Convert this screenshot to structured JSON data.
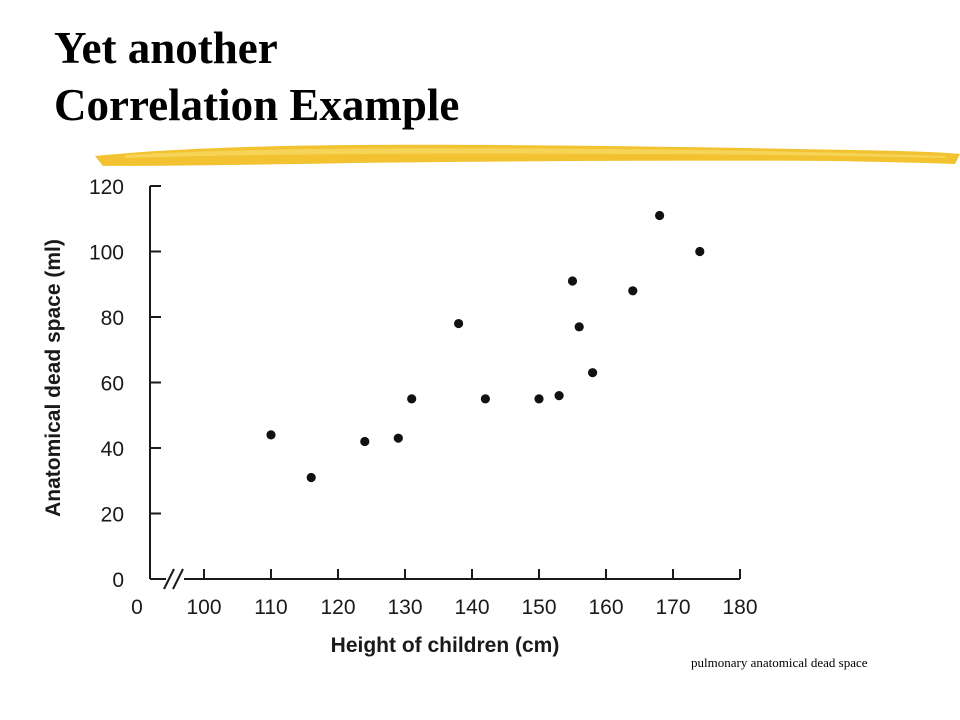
{
  "slide": {
    "title_line1": "Yet another",
    "title_line2": "Correlation Example",
    "caption": "pulmonary anatomical dead space",
    "accent_color": "#f2c230"
  },
  "chart_data": {
    "type": "scatter",
    "title": "",
    "xlabel": "Height of children (cm)",
    "ylabel": "Anatomical dead space (ml)",
    "x_axis_break": true,
    "x_ticks": [
      0,
      100,
      110,
      120,
      130,
      140,
      150,
      160,
      170,
      180
    ],
    "x_tick_labels": [
      "0",
      "100",
      "110",
      "120",
      "130",
      "140",
      "150",
      "160",
      "170",
      "180"
    ],
    "y_ticks": [
      0,
      20,
      40,
      60,
      80,
      100,
      120
    ],
    "y_tick_labels": [
      "0",
      "20",
      "40",
      "60",
      "80",
      "100",
      "120"
    ],
    "xlim": [
      0,
      180
    ],
    "ylim": [
      0,
      120
    ],
    "grid": false,
    "points": [
      {
        "x": 110,
        "y": 44
      },
      {
        "x": 116,
        "y": 31
      },
      {
        "x": 124,
        "y": 42
      },
      {
        "x": 129,
        "y": 43
      },
      {
        "x": 131,
        "y": 55
      },
      {
        "x": 138,
        "y": 78
      },
      {
        "x": 142,
        "y": 55
      },
      {
        "x": 150,
        "y": 55
      },
      {
        "x": 153,
        "y": 56
      },
      {
        "x": 155,
        "y": 91
      },
      {
        "x": 156,
        "y": 77
      },
      {
        "x": 158,
        "y": 63
      },
      {
        "x": 164,
        "y": 88
      },
      {
        "x": 168,
        "y": 111
      },
      {
        "x": 174,
        "y": 100
      }
    ]
  }
}
